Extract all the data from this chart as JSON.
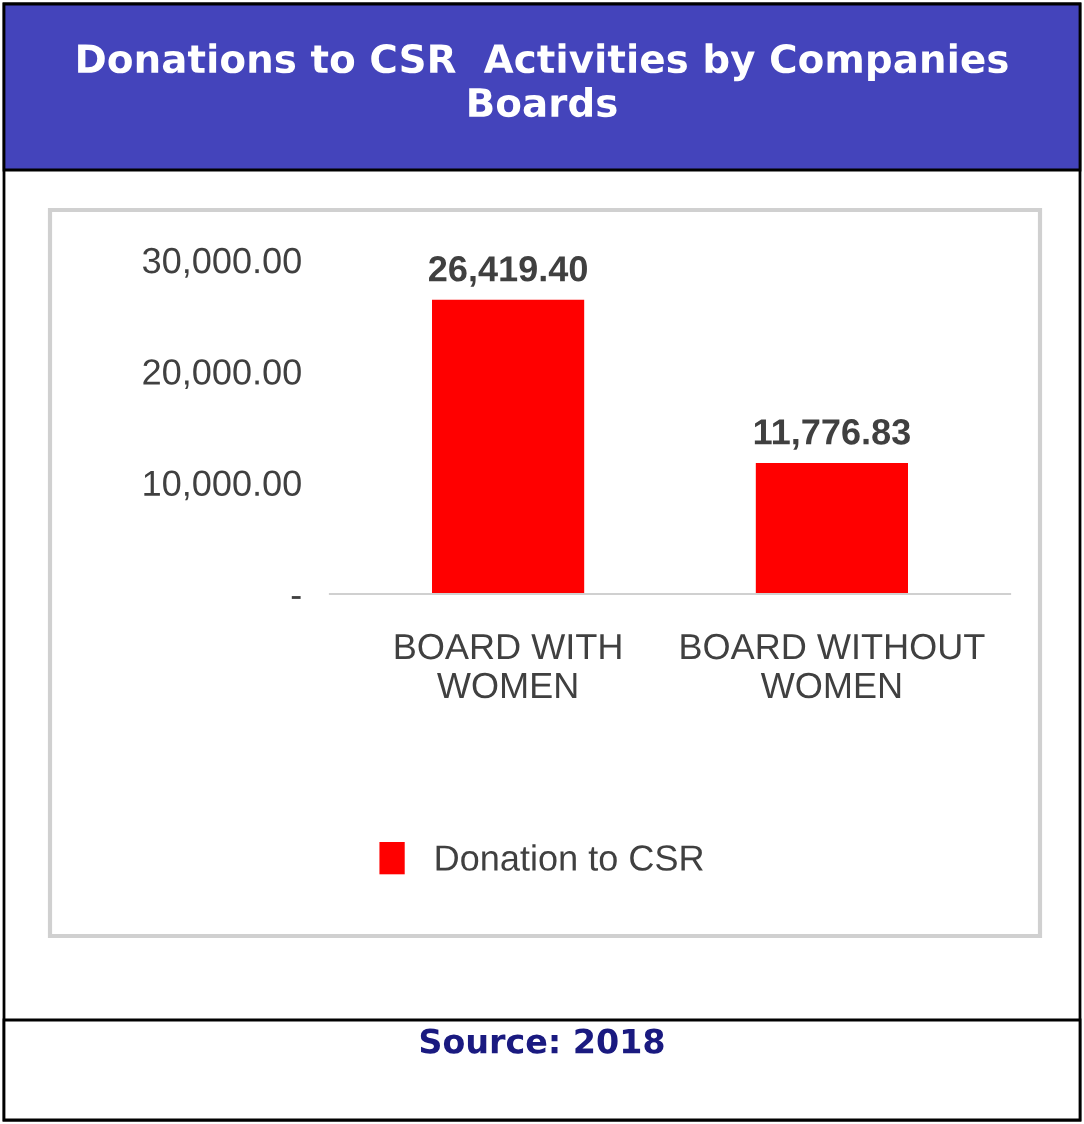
{
  "chart_data": {
    "type": "bar",
    "title": "Donations to CSR  Activities by Companies Boards",
    "categories": [
      "BOARD WITH\nWOMEN",
      "BOARD WITHOUT\nWOMEN"
    ],
    "series": [
      {
        "name": "Donation to CSR",
        "color": "#ff0000",
        "values": [
          26419.4,
          11776.83
        ]
      }
    ],
    "value_labels": [
      "26,419.40",
      "11,776.83"
    ],
    "ylim": [
      0,
      30000
    ],
    "yticks": [
      {
        "value": 0,
        "label": "-"
      },
      {
        "value": 10000,
        "label": "10,000.00"
      },
      {
        "value": 20000,
        "label": "20,000.00"
      },
      {
        "value": 30000,
        "label": "30,000.00"
      }
    ],
    "grid": false,
    "legend": "bottom",
    "annotations": [
      "Source: 2018"
    ]
  }
}
